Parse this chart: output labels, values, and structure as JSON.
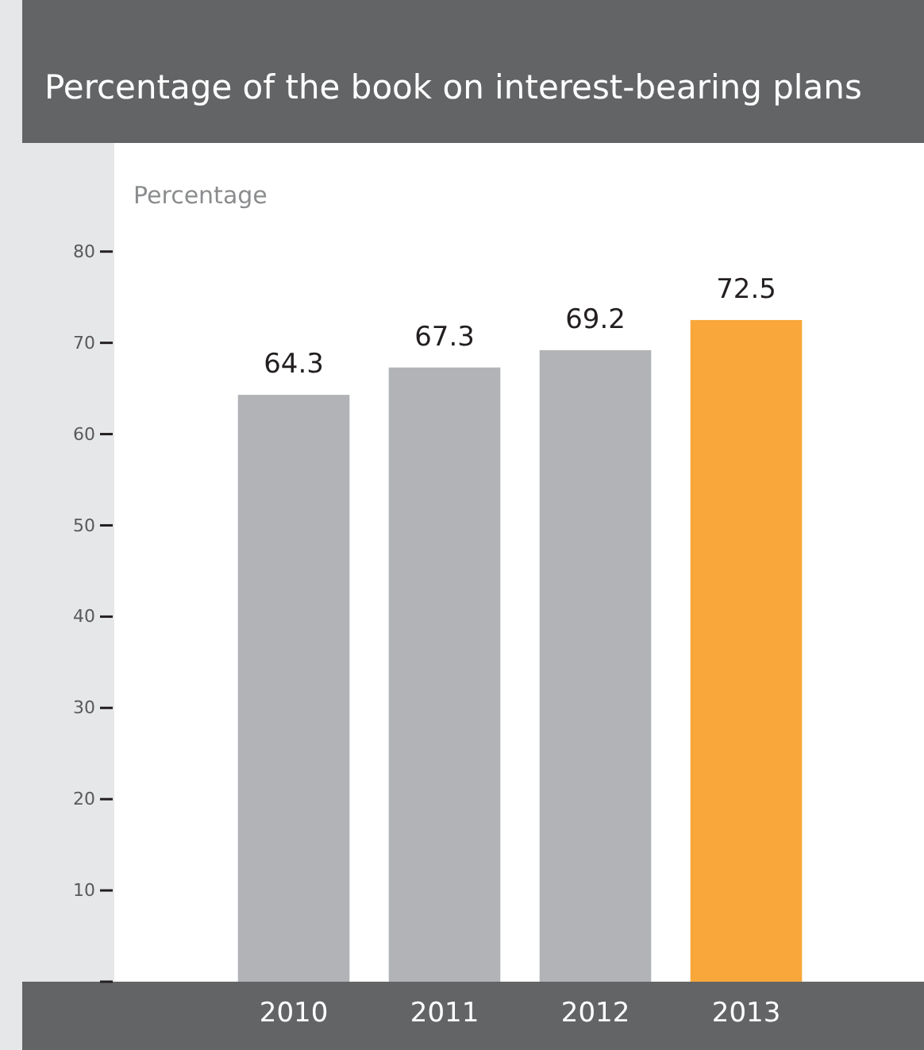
{
  "chart_data": {
    "type": "bar",
    "title": "Percentage of the book on interest-bearing plans",
    "ylabel": "Percentage",
    "categories": [
      "2010",
      "2011",
      "2012",
      "2013"
    ],
    "values": [
      64.3,
      67.3,
      69.2,
      72.5
    ],
    "colors": [
      "#b1b3b6",
      "#b1b3b6",
      "#b1b3b6",
      "#f9a73a"
    ],
    "ylim": [
      0,
      91.9
    ],
    "yticks": [
      {
        "value": 0,
        "label": null
      },
      10,
      20,
      30,
      40,
      50,
      60,
      70,
      80
    ],
    "grid": false,
    "data_labels": true
  }
}
